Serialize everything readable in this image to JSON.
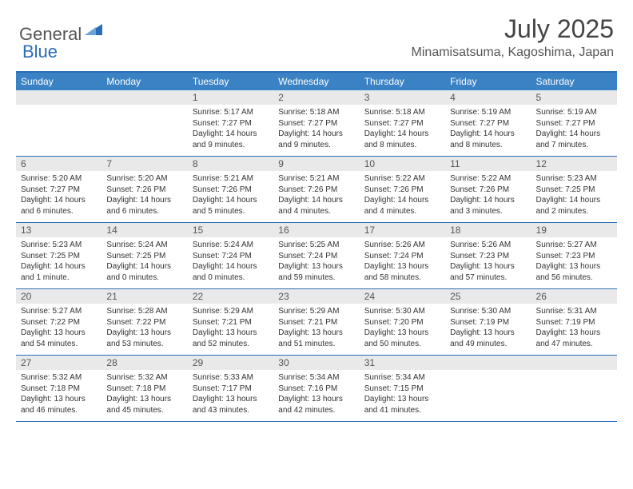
{
  "brand": {
    "word1": "General",
    "word2": "Blue"
  },
  "title": "July 2025",
  "location": "Minamisatsuma, Kagoshima, Japan",
  "colors": {
    "header_bg": "#3b82c4",
    "border": "#2a6db8",
    "daynum_bg": "#e9e9e9",
    "text": "#333333"
  },
  "day_names": [
    "Sunday",
    "Monday",
    "Tuesday",
    "Wednesday",
    "Thursday",
    "Friday",
    "Saturday"
  ],
  "weeks": [
    [
      {
        "n": "",
        "sr": "",
        "ss": "",
        "dl": ""
      },
      {
        "n": "",
        "sr": "",
        "ss": "",
        "dl": ""
      },
      {
        "n": "1",
        "sr": "5:17 AM",
        "ss": "7:27 PM",
        "dl": "14 hours and 9 minutes."
      },
      {
        "n": "2",
        "sr": "5:18 AM",
        "ss": "7:27 PM",
        "dl": "14 hours and 9 minutes."
      },
      {
        "n": "3",
        "sr": "5:18 AM",
        "ss": "7:27 PM",
        "dl": "14 hours and 8 minutes."
      },
      {
        "n": "4",
        "sr": "5:19 AM",
        "ss": "7:27 PM",
        "dl": "14 hours and 8 minutes."
      },
      {
        "n": "5",
        "sr": "5:19 AM",
        "ss": "7:27 PM",
        "dl": "14 hours and 7 minutes."
      }
    ],
    [
      {
        "n": "6",
        "sr": "5:20 AM",
        "ss": "7:27 PM",
        "dl": "14 hours and 6 minutes."
      },
      {
        "n": "7",
        "sr": "5:20 AM",
        "ss": "7:26 PM",
        "dl": "14 hours and 6 minutes."
      },
      {
        "n": "8",
        "sr": "5:21 AM",
        "ss": "7:26 PM",
        "dl": "14 hours and 5 minutes."
      },
      {
        "n": "9",
        "sr": "5:21 AM",
        "ss": "7:26 PM",
        "dl": "14 hours and 4 minutes."
      },
      {
        "n": "10",
        "sr": "5:22 AM",
        "ss": "7:26 PM",
        "dl": "14 hours and 4 minutes."
      },
      {
        "n": "11",
        "sr": "5:22 AM",
        "ss": "7:26 PM",
        "dl": "14 hours and 3 minutes."
      },
      {
        "n": "12",
        "sr": "5:23 AM",
        "ss": "7:25 PM",
        "dl": "14 hours and 2 minutes."
      }
    ],
    [
      {
        "n": "13",
        "sr": "5:23 AM",
        "ss": "7:25 PM",
        "dl": "14 hours and 1 minute."
      },
      {
        "n": "14",
        "sr": "5:24 AM",
        "ss": "7:25 PM",
        "dl": "14 hours and 0 minutes."
      },
      {
        "n": "15",
        "sr": "5:24 AM",
        "ss": "7:24 PM",
        "dl": "14 hours and 0 minutes."
      },
      {
        "n": "16",
        "sr": "5:25 AM",
        "ss": "7:24 PM",
        "dl": "13 hours and 59 minutes."
      },
      {
        "n": "17",
        "sr": "5:26 AM",
        "ss": "7:24 PM",
        "dl": "13 hours and 58 minutes."
      },
      {
        "n": "18",
        "sr": "5:26 AM",
        "ss": "7:23 PM",
        "dl": "13 hours and 57 minutes."
      },
      {
        "n": "19",
        "sr": "5:27 AM",
        "ss": "7:23 PM",
        "dl": "13 hours and 56 minutes."
      }
    ],
    [
      {
        "n": "20",
        "sr": "5:27 AM",
        "ss": "7:22 PM",
        "dl": "13 hours and 54 minutes."
      },
      {
        "n": "21",
        "sr": "5:28 AM",
        "ss": "7:22 PM",
        "dl": "13 hours and 53 minutes."
      },
      {
        "n": "22",
        "sr": "5:29 AM",
        "ss": "7:21 PM",
        "dl": "13 hours and 52 minutes."
      },
      {
        "n": "23",
        "sr": "5:29 AM",
        "ss": "7:21 PM",
        "dl": "13 hours and 51 minutes."
      },
      {
        "n": "24",
        "sr": "5:30 AM",
        "ss": "7:20 PM",
        "dl": "13 hours and 50 minutes."
      },
      {
        "n": "25",
        "sr": "5:30 AM",
        "ss": "7:19 PM",
        "dl": "13 hours and 49 minutes."
      },
      {
        "n": "26",
        "sr": "5:31 AM",
        "ss": "7:19 PM",
        "dl": "13 hours and 47 minutes."
      }
    ],
    [
      {
        "n": "27",
        "sr": "5:32 AM",
        "ss": "7:18 PM",
        "dl": "13 hours and 46 minutes."
      },
      {
        "n": "28",
        "sr": "5:32 AM",
        "ss": "7:18 PM",
        "dl": "13 hours and 45 minutes."
      },
      {
        "n": "29",
        "sr": "5:33 AM",
        "ss": "7:17 PM",
        "dl": "13 hours and 43 minutes."
      },
      {
        "n": "30",
        "sr": "5:34 AM",
        "ss": "7:16 PM",
        "dl": "13 hours and 42 minutes."
      },
      {
        "n": "31",
        "sr": "5:34 AM",
        "ss": "7:15 PM",
        "dl": "13 hours and 41 minutes."
      },
      {
        "n": "",
        "sr": "",
        "ss": "",
        "dl": ""
      },
      {
        "n": "",
        "sr": "",
        "ss": "",
        "dl": ""
      }
    ]
  ],
  "labels": {
    "sunrise": "Sunrise:",
    "sunset": "Sunset:",
    "daylight": "Daylight:"
  }
}
